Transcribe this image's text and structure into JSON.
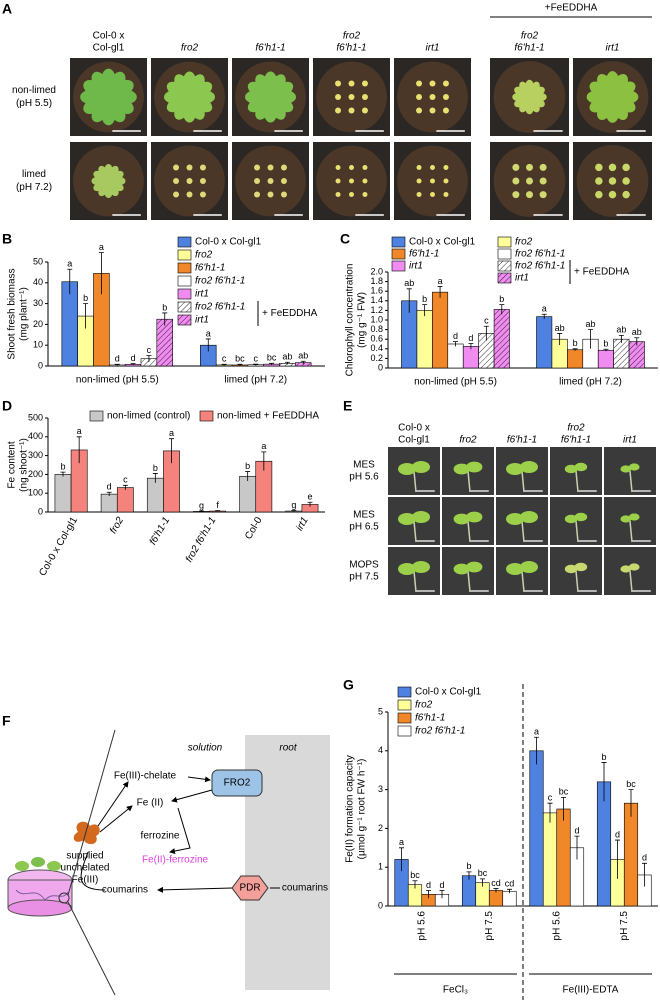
{
  "panel_a": {
    "letter": "A",
    "treatment": "+FeEDDHA",
    "columns": [
      [
        "Col-0 x",
        "Col-gl1"
      ],
      [
        "fro2"
      ],
      [
        "f6'h1-1"
      ],
      [
        "fro2",
        "f6'h1-1"
      ],
      [
        "irt1"
      ],
      [
        "fro2",
        "f6'h1-1"
      ],
      [
        "irt1"
      ]
    ],
    "rows": [
      [
        "non-limed",
        "(pH 5.5)"
      ],
      [
        "limed",
        "(pH 7.2)"
      ]
    ]
  },
  "panel_e": {
    "letter": "E",
    "columns": [
      [
        "Col-0 x",
        "Col-gl1"
      ],
      [
        "fro2"
      ],
      [
        "f6'h1-1"
      ],
      [
        "fro2",
        "f6'h1-1"
      ],
      [
        "irt1"
      ]
    ],
    "rows": [
      [
        "MES",
        "pH 5.6"
      ],
      [
        "MES",
        "pH 6.5"
      ],
      [
        "MOPS",
        "pH 7.5"
      ]
    ]
  },
  "panel_f": {
    "letter": "F",
    "solution": "solution",
    "root": "root",
    "fro2": "FRO2",
    "chelate": "Fe(III)-chelate",
    "fe2": "Fe (II)",
    "ferrozine": "ferrozine",
    "complex": "Fe(II)-ferrozine",
    "supplied": [
      "supplied",
      "unchelated",
      "Fe(III)"
    ],
    "coumarins_out": "coumarins",
    "pdr": "PDR",
    "coumarins_in": "coumarins"
  },
  "chart_data": [
    {
      "panel": "B",
      "type": "bar",
      "y_label": [
        "Shoot fresh biomass",
        "(mg plant⁻¹)"
      ],
      "categories": [
        "non-limed (pH 5.5)",
        "limed (pH 7.2)"
      ],
      "ylim": [
        0,
        50
      ],
      "yticks": [
        0,
        10,
        20,
        30,
        40,
        50
      ],
      "legend_note": "+ FeEDDHA",
      "series": [
        {
          "name": "Col-0 x Col-gl1",
          "color": "#4f81e0",
          "values": [
            40.5,
            10
          ],
          "errors": [
            6,
            3
          ],
          "letters": [
            "a",
            "a"
          ]
        },
        {
          "name": "fro2",
          "color": "#ffff99",
          "values": [
            24,
            0.5
          ],
          "errors": [
            6,
            0.3
          ],
          "letters": [
            "b",
            "c"
          ]
        },
        {
          "name": "f6'h1-1",
          "color": "#f0882a",
          "values": [
            44.5,
            0.5
          ],
          "errors": [
            10,
            0.3
          ],
          "letters": [
            "a",
            "bc"
          ]
        },
        {
          "name": "fro2 f6'h1-1",
          "color": "#ffffff",
          "values": [
            0.5,
            0.6
          ],
          "errors": [
            0.3,
            0.3
          ],
          "letters": [
            "d",
            "c"
          ]
        },
        {
          "name": "irt1",
          "color": "#f08cf0",
          "values": [
            0.8,
            0.9
          ],
          "errors": [
            0.4,
            0.4
          ],
          "letters": [
            "d",
            "bc"
          ]
        },
        {
          "name": "fro2 f6'h1-1",
          "color": "#ffffff",
          "hatch": true,
          "values": [
            3.5,
            1.3
          ],
          "errors": [
            1.5,
            0.5
          ],
          "letters": [
            "c",
            "ab"
          ]
        },
        {
          "name": "irt1",
          "color": "#f08cf0",
          "hatch": true,
          "values": [
            22.5,
            1.6
          ],
          "errors": [
            3,
            0.7
          ],
          "letters": [
            "b",
            "ab"
          ]
        }
      ]
    },
    {
      "panel": "C",
      "type": "bar",
      "y_label": [
        "Chlorophyll concentration",
        "(mg g⁻¹ FW)"
      ],
      "categories": [
        "non-limed (pH 5.5)",
        "limed (pH 7.2)"
      ],
      "ylim": [
        0,
        2
      ],
      "yticks": [
        0,
        0.2,
        0.4,
        0.6,
        0.8,
        {
          "value": 1,
          "label": "1.0"
        },
        1.2,
        1.4,
        1.6,
        1.8,
        {
          "value": 2,
          "label": "2.0"
        }
      ],
      "legend_note": "+ FeEDDHA",
      "series": [
        {
          "name": "Col-0 x Col-gl1",
          "color": "#4f81e0",
          "values": [
            1.4,
            1.07
          ],
          "errors": [
            0.25,
            0.05
          ],
          "letters": [
            "ab",
            "a"
          ]
        },
        {
          "name": "fro2",
          "color": "#ffff99",
          "values": [
            1.2,
            0.6
          ],
          "errors": [
            0.12,
            0.12
          ],
          "letters": [
            "b",
            "ab"
          ]
        },
        {
          "name": "f6'h1-1",
          "color": "#f0882a",
          "values": [
            1.58,
            0.38
          ],
          "errors": [
            0.12,
            0.02
          ],
          "letters": [
            "a",
            "b"
          ]
        },
        {
          "name": "fro2 f6'h1-1",
          "color": "#ffffff",
          "values": [
            0.5,
            0.6
          ],
          "errors": [
            0.05,
            0.2
          ],
          "letters": [
            "d",
            "ab"
          ]
        },
        {
          "name": "irt1",
          "color": "#f08cf0",
          "values": [
            0.45,
            0.37
          ],
          "errors": [
            0.06,
            0.02
          ],
          "letters": [
            "d",
            "b"
          ]
        },
        {
          "name": "fro2 f6'h1-1",
          "color": "#ffffff",
          "hatch": true,
          "values": [
            0.72,
            0.6
          ],
          "errors": [
            0.15,
            0.08
          ],
          "letters": [
            "c",
            "ab"
          ]
        },
        {
          "name": "irt1",
          "color": "#f08cf0",
          "hatch": true,
          "values": [
            1.22,
            0.55
          ],
          "errors": [
            0.1,
            0.08
          ],
          "letters": [
            "b",
            "ab"
          ]
        }
      ]
    },
    {
      "panel": "D",
      "type": "bar",
      "y_label": [
        "Fe content",
        "(ng shoot⁻¹)"
      ],
      "categories": [
        "Col-0 x Col-gl1",
        "fro2",
        "f6'h1-1",
        "fro2 f6'h1-1",
        "Col-0",
        "irt1"
      ],
      "ylim": [
        0,
        500
      ],
      "yticks": [
        0,
        100,
        200,
        300,
        400,
        500
      ],
      "series": [
        {
          "name": "non-limed (control)",
          "color": "#c8c8c8",
          "values": [
            200,
            95,
            180,
            3,
            190,
            5
          ],
          "errors": [
            12,
            10,
            25,
            2,
            25,
            3
          ],
          "letters": [
            "b",
            "d",
            "b",
            "g",
            "b",
            "g"
          ]
        },
        {
          "name": "non-limed + FeEDDHA",
          "color": "#f4837d",
          "values": [
            330,
            130,
            325,
            5,
            270,
            40
          ],
          "errors": [
            70,
            12,
            65,
            2,
            50,
            12
          ],
          "letters": [
            "a",
            "c",
            "a",
            "f",
            "a",
            "e"
          ]
        }
      ]
    },
    {
      "panel": "G",
      "type": "bar",
      "y_label": [
        "Fe(II) formation capacity",
        "(µmol g⁻¹ root FW h⁻¹)"
      ],
      "categories": [
        "pH 5.6",
        "pH 7.5",
        "pH 5.6",
        "pH 7.5"
      ],
      "condition_labels": [
        "FeCl₃",
        "Fe(III)-EDTA"
      ],
      "ylim": [
        0,
        5
      ],
      "yticks": [
        0,
        1,
        2,
        3,
        4,
        5
      ],
      "series": [
        {
          "name": "Col-0 x Col-gl1",
          "color": "#4f81e0",
          "values": [
            1.2,
            0.78,
            4.0,
            3.2
          ],
          "errors": [
            0.3,
            0.1,
            0.35,
            0.5
          ],
          "letters": [
            "a",
            "b",
            "a",
            "b"
          ]
        },
        {
          "name": "fro2",
          "color": "#ffff99",
          "values": [
            0.55,
            0.6,
            2.4,
            1.2
          ],
          "errors": [
            0.1,
            0.1,
            0.25,
            0.5
          ],
          "letters": [
            "bc",
            "bc",
            "c",
            "d"
          ]
        },
        {
          "name": "f6'h1-1",
          "color": "#f0882a",
          "values": [
            0.3,
            0.4,
            2.5,
            2.65
          ],
          "errors": [
            0.1,
            0.05,
            0.3,
            0.35
          ],
          "letters": [
            "d",
            "cd",
            "bc",
            "bc"
          ]
        },
        {
          "name": "fro2 f6'h1-1",
          "color": "#ffffff",
          "values": [
            0.3,
            0.38,
            1.5,
            0.8
          ],
          "errors": [
            0.1,
            0.05,
            0.3,
            0.3
          ],
          "letters": [
            "d",
            "cd",
            "d",
            "d"
          ]
        }
      ]
    }
  ]
}
